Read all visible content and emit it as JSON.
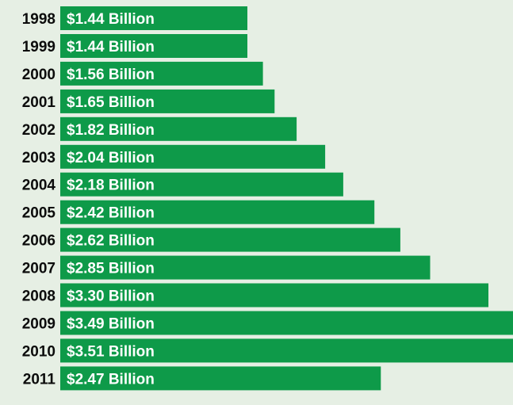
{
  "chart_data": {
    "type": "bar",
    "orientation": "horizontal",
    "categories": [
      "1998",
      "1999",
      "2000",
      "2001",
      "2002",
      "2003",
      "2004",
      "2005",
      "2006",
      "2007",
      "2008",
      "2009",
      "2010",
      "2011"
    ],
    "values": [
      1.44,
      1.44,
      1.56,
      1.65,
      1.82,
      2.04,
      2.18,
      2.42,
      2.62,
      2.85,
      3.3,
      3.49,
      3.51,
      2.47
    ],
    "data_labels": [
      "$1.44 Billion",
      "$1.44 Billion",
      "$1.56 Billion",
      "$1.65 Billion",
      "$1.82 Billion",
      "$2.04 Billion",
      "$2.18 Billion",
      "$2.42 Billion",
      "$2.62 Billion",
      "$2.85 Billion",
      "$3.30 Billion",
      "$3.49 Billion",
      "$3.51 Billion",
      "$2.47 Billion"
    ],
    "unit": "Billion",
    "grid": false,
    "legend": "none"
  },
  "colors": {
    "background": "#e6efe4",
    "bar": "#0e9a49",
    "year_text": "#0c0c0c",
    "value_text": "#ffffff"
  }
}
